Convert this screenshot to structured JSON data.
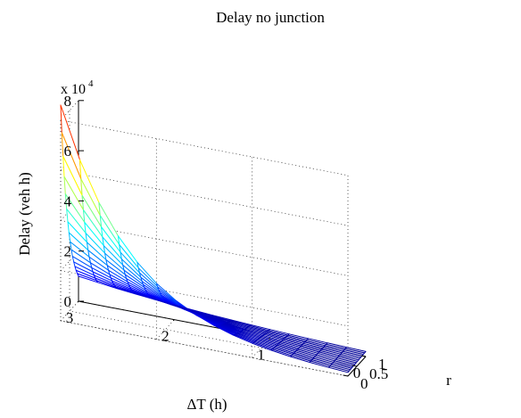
{
  "chart_data": {
    "type": "surface",
    "title": "Delay no junction",
    "xlabel": "ΔT (h)",
    "ylabel": "r",
    "zlabel": "Delay (veh h)",
    "z_multiplier": "x 10",
    "z_multiplier_exp": "4",
    "x_range": [
      0,
      3
    ],
    "y_range": [
      0,
      1
    ],
    "zlim": [
      0,
      8
    ],
    "x_ticks": [
      "0",
      "1",
      "2",
      "3"
    ],
    "y_ticks": [
      "0",
      "0.5",
      "1"
    ],
    "z_ticks": [
      "0",
      "2",
      "4",
      "6",
      "8"
    ],
    "grid": true,
    "colormap": "jet",
    "grid_lines_per_axis": 16,
    "delay_corner_values_x10e4": {
      "dT_0_r_0": 0.15,
      "dT_0_r_1": 0.2,
      "dT_3_r_1": 1.0,
      "dT_3_r_0": 8.6
    }
  }
}
